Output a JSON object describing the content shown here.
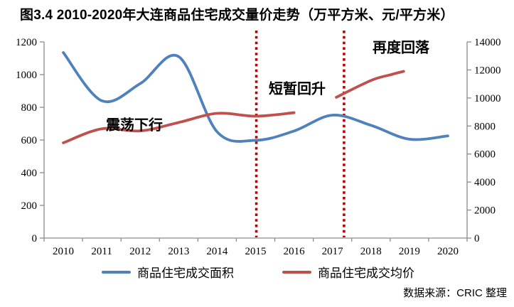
{
  "title": "图3.4  2010-2020年大连商品住宅成交量价走势（万平方米、元/平方米）",
  "source_note": "数据来源：CRIC 整理",
  "chart_data": {
    "type": "line",
    "title": "图3.4 2010-2020年大连商品住宅成交量价走势（万平方米、元/平方米）",
    "categories": [
      2010,
      2011,
      2012,
      2013,
      2014,
      2015,
      2016,
      2017,
      2018,
      2019,
      2020
    ],
    "left_axis": {
      "unit": "万平方米",
      "min": 0,
      "max": 1200,
      "step": 200,
      "ticks": [
        0,
        200,
        400,
        600,
        800,
        1000,
        1200
      ]
    },
    "right_axis": {
      "unit": "元/平方米",
      "min": 0,
      "max": 14000,
      "step": 2000,
      "ticks": [
        0,
        2000,
        4000,
        6000,
        8000,
        10000,
        12000,
        14000
      ]
    },
    "grid": false,
    "legend_position": "bottom",
    "series": [
      {
        "name": "商品住宅成交面积",
        "axis": "left",
        "color": "#4F81BD",
        "smooth": true,
        "segments": [
          {
            "x": [
              2010,
              2011,
              2012,
              2013,
              2014,
              2015,
              2016,
              2017,
              2018,
              2019,
              2020
            ],
            "values": [
              1135,
              840,
              945,
              1110,
              650,
              598,
              655,
              752,
              690,
              605,
              625
            ]
          }
        ]
      },
      {
        "name": "商品住宅成交均价",
        "axis": "right",
        "color": "#C0504D",
        "smooth": true,
        "segments": [
          {
            "x": [
              2010,
              2011,
              2012,
              2013,
              2014,
              2015,
              2016
            ],
            "values": [
              6800,
              7800,
              7650,
              8250,
              8900,
              8700,
              8950
            ]
          },
          {
            "x": [
              2017.1,
              2018,
              2018.5,
              2018.85
            ],
            "values": [
              10050,
              11250,
              11650,
              11900
            ]
          }
        ]
      }
    ],
    "dividers": {
      "color": "#C00000",
      "style": "dotted",
      "years": [
        2015.02,
        2017.3
      ]
    },
    "annotations": [
      {
        "text": "震荡下行"
      },
      {
        "text": "短暂回升"
      },
      {
        "text": "再度回落"
      }
    ]
  }
}
